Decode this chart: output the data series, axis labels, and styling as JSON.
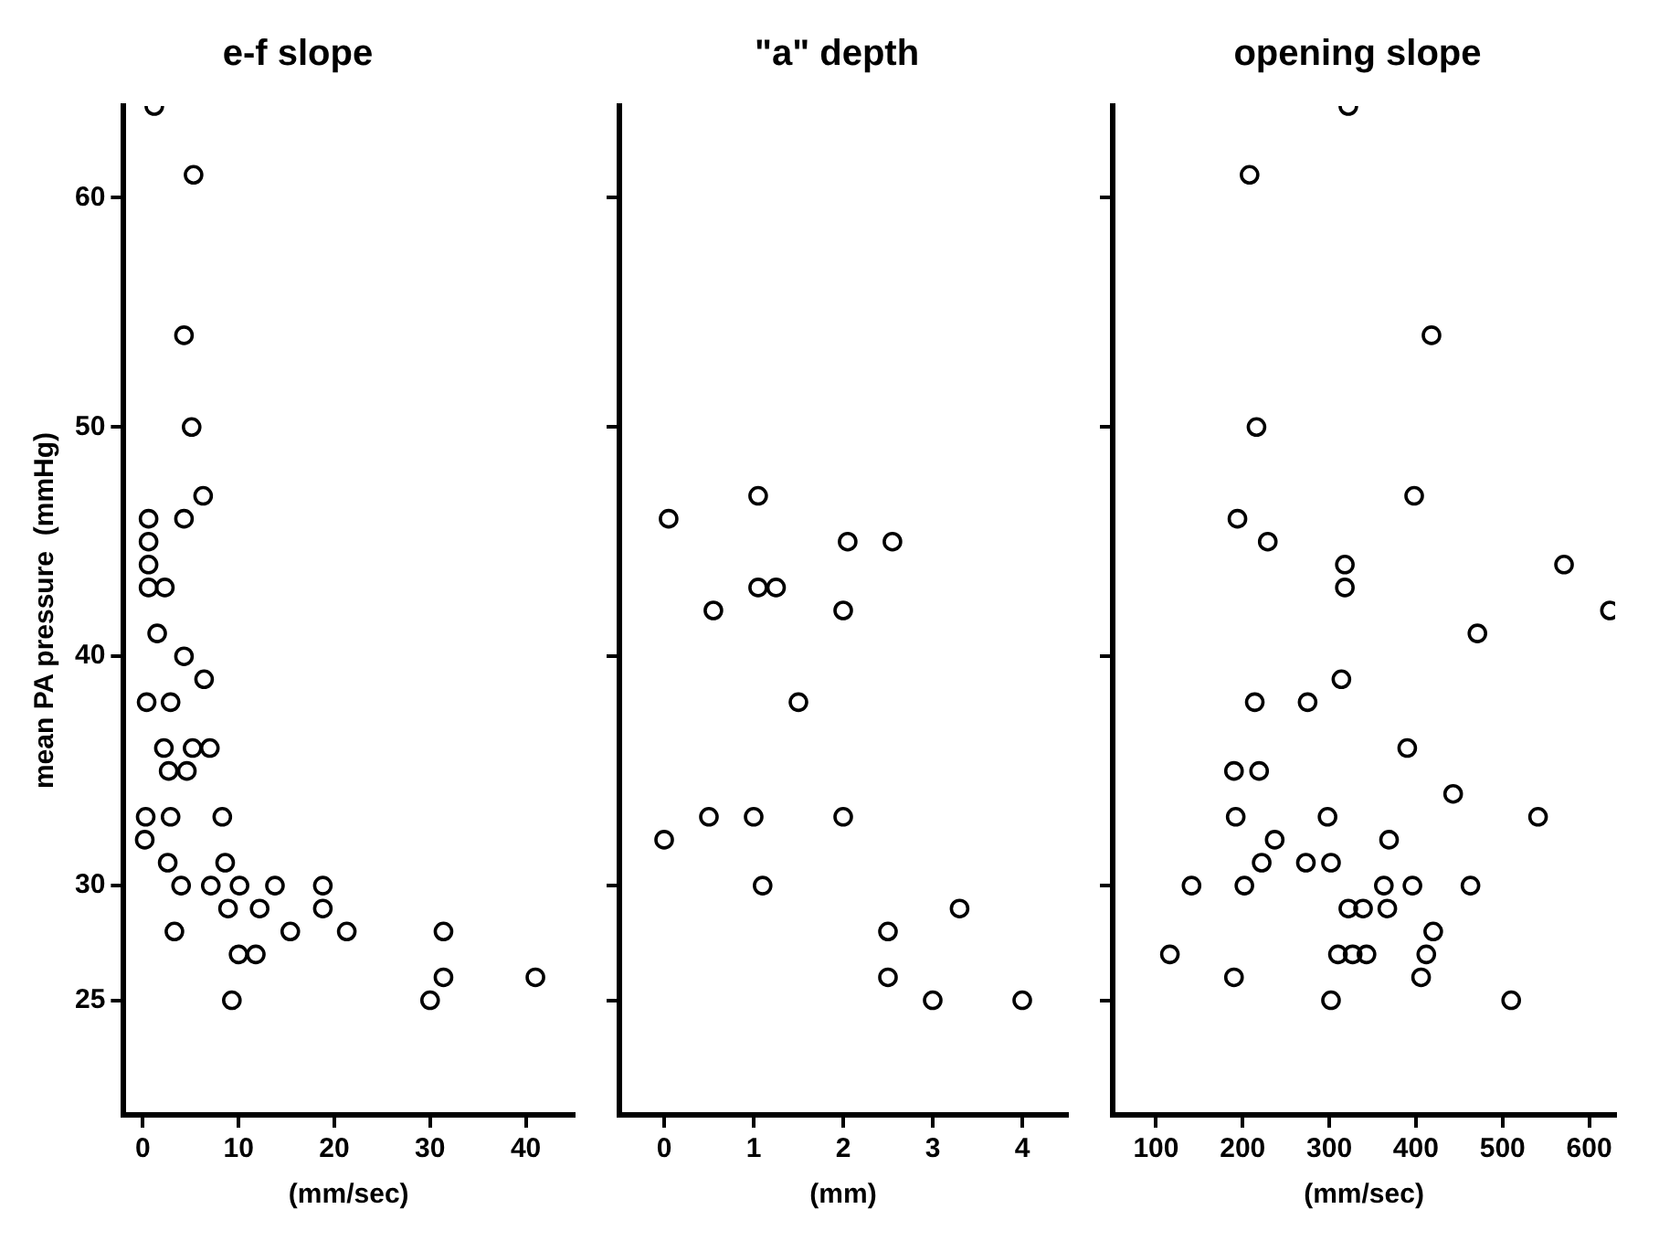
{
  "chart_data": [
    {
      "type": "scatter",
      "title": "e-f slope",
      "xlabel": "(mm/sec)",
      "ylabel": "mean PA pressure  (mmHg)",
      "color": "#000000",
      "marker": "circle",
      "xlim": [
        -2,
        45
      ],
      "xticks": [
        0,
        10,
        20,
        30,
        40
      ],
      "ylim": [
        20,
        64
      ],
      "yticks": [
        25,
        30,
        40,
        50,
        60
      ],
      "x": [
        1.2,
        5.3,
        4.3,
        5.1,
        6.3,
        0.6,
        4.3,
        0.6,
        0.6,
        0.6,
        2.3,
        1.5,
        4.3,
        6.4,
        0.4,
        2.9,
        2.2,
        5.2,
        7.0,
        2.7,
        4.6,
        0.3,
        2.9,
        8.3,
        0.2,
        2.6,
        8.6,
        4.0,
        7.1,
        10.1,
        13.8,
        18.8,
        8.9,
        12.2,
        18.8,
        3.3,
        15.4,
        21.3,
        31.4,
        10.0,
        11.8,
        9.3,
        30.0,
        31.4,
        41.0
      ],
      "values": [
        64,
        61,
        54,
        50,
        47,
        46,
        46,
        45,
        44,
        43,
        43,
        41,
        40,
        39,
        38,
        38,
        36,
        36,
        36,
        35,
        35,
        33,
        33,
        33,
        32,
        31,
        31,
        30,
        30,
        30,
        30,
        30,
        29,
        29,
        29,
        28,
        28,
        28,
        28,
        27,
        27,
        25,
        25,
        26,
        26
      ]
    },
    {
      "type": "scatter",
      "title": "\"a\" depth",
      "xlabel": "(mm)",
      "color": "#000000",
      "marker": "circle",
      "tick_labels": "x",
      "xlim": [
        -0.5,
        4.5
      ],
      "xticks": [
        0,
        1,
        2,
        3,
        4
      ],
      "ylim": [
        20,
        64
      ],
      "yticks": [
        25,
        30,
        40,
        50,
        60
      ],
      "x": [
        0.05,
        1.05,
        2.05,
        2.55,
        1.05,
        1.25,
        0.55,
        2.0,
        1.5,
        0.5,
        1.0,
        2.0,
        0.0,
        1.1,
        3.3,
        2.5,
        2.5,
        3.0,
        4.0
      ],
      "values": [
        46,
        47,
        45,
        45,
        43,
        43,
        42,
        42,
        38,
        33,
        33,
        33,
        32,
        30,
        29,
        28,
        26,
        25,
        25
      ]
    },
    {
      "type": "scatter",
      "title": "opening slope",
      "xlabel": "(mm/sec)",
      "color": "#000000",
      "marker": "circle",
      "tick_labels": "x",
      "xlim": [
        50,
        630
      ],
      "xticks": [
        100,
        200,
        300,
        400,
        500,
        600
      ],
      "ylim": [
        20,
        64
      ],
      "yticks": [
        25,
        30,
        40,
        50,
        60
      ],
      "x": [
        322,
        208,
        418,
        216,
        398,
        194,
        229,
        318,
        318,
        571,
        624,
        471,
        314,
        214,
        275,
        390,
        190,
        219,
        443,
        541,
        192,
        298,
        237,
        369,
        222,
        273,
        302,
        141,
        202,
        363,
        396,
        463,
        322,
        339,
        367,
        420,
        116,
        310,
        327,
        343,
        412,
        190,
        406,
        302,
        510
      ],
      "values": [
        64,
        61,
        54,
        50,
        47,
        46,
        45,
        44,
        43,
        44,
        42,
        41,
        39,
        38,
        38,
        36,
        35,
        35,
        34,
        33,
        33,
        33,
        32,
        32,
        31,
        31,
        31,
        30,
        30,
        30,
        30,
        30,
        29,
        29,
        29,
        28,
        27,
        27,
        27,
        27,
        27,
        26,
        26,
        25,
        25
      ]
    }
  ]
}
